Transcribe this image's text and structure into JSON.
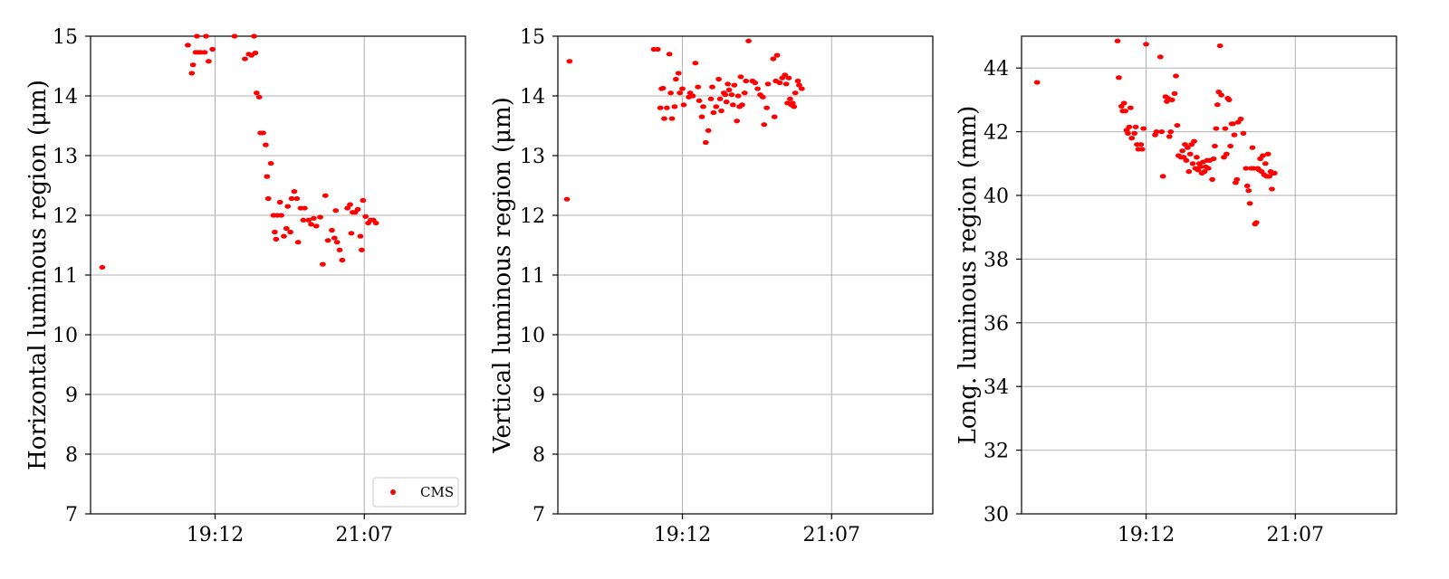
{
  "colors": {
    "series": "#ff0000",
    "grid": "#b0b0b0",
    "axis": "#000000"
  },
  "chart_data": [
    {
      "type": "scatter",
      "ylabel": "Horizontal luminous region (μm)",
      "xlabel": "",
      "x_tick_labels": [
        "19:12",
        "21:07"
      ],
      "x_range_minutes": [
        "17:36",
        "22:25"
      ],
      "ylim": [
        7,
        15
      ],
      "y_ticks": [
        "7",
        "8",
        "9",
        "10",
        "11",
        "12",
        "13",
        "14",
        "15"
      ],
      "grid": true,
      "legend": {
        "placement": "lower-right",
        "entries": [
          "CMS"
        ]
      },
      "series": [
        {
          "name": "CMS",
          "points": [
            [
              "17:45",
              11.13
            ],
            [
              "18:51",
              14.85
            ],
            [
              "18:54",
              14.38
            ],
            [
              "18:55",
              14.52
            ],
            [
              "18:57",
              14.73
            ],
            [
              "18:58",
              15.0
            ],
            [
              "18:59",
              14.73
            ],
            [
              "19:01",
              14.73
            ],
            [
              "19:04",
              14.73
            ],
            [
              "19:05",
              15.0
            ],
            [
              "19:07",
              14.58
            ],
            [
              "19:10",
              14.78
            ],
            [
              "19:27",
              15.0
            ],
            [
              "19:35",
              14.62
            ],
            [
              "19:38",
              14.7
            ],
            [
              "19:40",
              14.68
            ],
            [
              "19:42",
              15.0
            ],
            [
              "19:43",
              14.72
            ],
            [
              "19:44",
              14.05
            ],
            [
              "19:46",
              13.98
            ],
            [
              "19:47",
              13.38
            ],
            [
              "19:49",
              13.38
            ],
            [
              "19:51",
              13.18
            ],
            [
              "19:52",
              12.65
            ],
            [
              "19:53",
              12.28
            ],
            [
              "19:55",
              12.87
            ],
            [
              "19:57",
              12.0
            ],
            [
              "19:58",
              11.72
            ],
            [
              "19:59",
              11.6
            ],
            [
              "20:00",
              12.0
            ],
            [
              "20:02",
              12.22
            ],
            [
              "20:03",
              12.0
            ],
            [
              "20:05",
              11.65
            ],
            [
              "20:07",
              11.78
            ],
            [
              "20:08",
              12.15
            ],
            [
              "20:10",
              11.72
            ],
            [
              "20:11",
              12.28
            ],
            [
              "20:13",
              12.4
            ],
            [
              "20:15",
              12.28
            ],
            [
              "20:16",
              11.55
            ],
            [
              "20:18",
              12.12
            ],
            [
              "20:20",
              11.92
            ],
            [
              "20:21",
              12.12
            ],
            [
              "20:24",
              11.92
            ],
            [
              "20:26",
              11.85
            ],
            [
              "20:28",
              11.95
            ],
            [
              "20:30",
              11.82
            ],
            [
              "20:33",
              11.97
            ],
            [
              "20:35",
              11.18
            ],
            [
              "20:37",
              12.33
            ],
            [
              "20:39",
              11.58
            ],
            [
              "20:42",
              11.75
            ],
            [
              "20:44",
              11.62
            ],
            [
              "20:45",
              12.08
            ],
            [
              "20:46",
              11.55
            ],
            [
              "20:48",
              11.42
            ],
            [
              "20:50",
              11.25
            ],
            [
              "20:54",
              12.12
            ],
            [
              "20:56",
              12.18
            ],
            [
              "20:57",
              11.7
            ],
            [
              "20:58",
              12.05
            ],
            [
              "21:00",
              12.05
            ],
            [
              "21:02",
              12.1
            ],
            [
              "21:04",
              11.65
            ],
            [
              "21:05",
              11.42
            ],
            [
              "21:06",
              12.25
            ],
            [
              "21:08",
              11.98
            ],
            [
              "21:10",
              11.87
            ],
            [
              "21:12",
              11.92
            ],
            [
              "21:14",
              11.92
            ],
            [
              "21:16",
              11.87
            ]
          ]
        }
      ]
    },
    {
      "type": "scatter",
      "ylabel": "Vertical luminous region (μm)",
      "xlabel": "",
      "x_tick_labels": [
        "19:12",
        "21:07"
      ],
      "x_range_minutes": [
        "17:36",
        "22:25"
      ],
      "ylim": [
        7,
        15
      ],
      "y_ticks": [
        "7",
        "8",
        "9",
        "10",
        "11",
        "12",
        "13",
        "14",
        "15"
      ],
      "grid": true,
      "series": [
        {
          "name": "CMS",
          "points": [
            [
              "17:43",
              12.27
            ],
            [
              "17:45",
              14.58
            ],
            [
              "18:50",
              14.78
            ],
            [
              "18:53",
              14.78
            ],
            [
              "18:55",
              13.8
            ],
            [
              "18:56",
              14.12
            ],
            [
              "18:57",
              14.13
            ],
            [
              "18:58",
              13.62
            ],
            [
              "19:00",
              13.8
            ],
            [
              "19:02",
              14.7
            ],
            [
              "19:03",
              14.05
            ],
            [
              "19:04",
              13.62
            ],
            [
              "19:06",
              13.82
            ],
            [
              "19:07",
              14.28
            ],
            [
              "19:09",
              14.38
            ],
            [
              "19:10",
              14.05
            ],
            [
              "19:12",
              14.12
            ],
            [
              "19:13",
              13.85
            ],
            [
              "19:17",
              13.98
            ],
            [
              "19:18",
              14.05
            ],
            [
              "19:20",
              14.0
            ],
            [
              "19:22",
              14.55
            ],
            [
              "19:24",
              14.15
            ],
            [
              "19:25",
              13.92
            ],
            [
              "19:27",
              13.65
            ],
            [
              "19:28",
              13.82
            ],
            [
              "19:30",
              13.22
            ],
            [
              "19:32",
              13.42
            ],
            [
              "19:34",
              13.95
            ],
            [
              "19:35",
              14.15
            ],
            [
              "19:36",
              13.72
            ],
            [
              "19:38",
              13.82
            ],
            [
              "19:40",
              14.28
            ],
            [
              "19:41",
              13.95
            ],
            [
              "19:42",
              13.75
            ],
            [
              "19:44",
              14.05
            ],
            [
              "19:45",
              14.02
            ],
            [
              "19:46",
              13.9
            ],
            [
              "19:47",
              14.2
            ],
            [
              "19:48",
              14.1
            ],
            [
              "19:50",
              14.02
            ],
            [
              "19:51",
              13.85
            ],
            [
              "19:52",
              14.18
            ],
            [
              "19:54",
              13.58
            ],
            [
              "19:55",
              14.0
            ],
            [
              "19:56",
              13.82
            ],
            [
              "19:57",
              14.32
            ],
            [
              "19:58",
              13.85
            ],
            [
              "20:00",
              14.05
            ],
            [
              "20:01",
              14.25
            ],
            [
              "20:03",
              14.92
            ],
            [
              "20:06",
              14.25
            ],
            [
              "20:08",
              14.22
            ],
            [
              "20:10",
              14.12
            ],
            [
              "20:12",
              14.02
            ],
            [
              "20:14",
              13.98
            ],
            [
              "20:15",
              13.52
            ],
            [
              "20:17",
              13.8
            ],
            [
              "20:18",
              14.2
            ],
            [
              "20:22",
              14.62
            ],
            [
              "20:23",
              13.65
            ],
            [
              "20:24",
              14.25
            ],
            [
              "20:25",
              14.68
            ],
            [
              "20:27",
              14.22
            ],
            [
              "20:29",
              14.3
            ],
            [
              "20:31",
              14.35
            ],
            [
              "20:32",
              14.2
            ],
            [
              "20:33",
              13.88
            ],
            [
              "20:34",
              14.3
            ],
            [
              "20:35",
              13.95
            ],
            [
              "20:36",
              13.85
            ],
            [
              "20:37",
              13.88
            ],
            [
              "20:38",
              13.82
            ],
            [
              "20:39",
              14.05
            ],
            [
              "20:41",
              14.25
            ],
            [
              "20:42",
              14.18
            ],
            [
              "20:44",
              14.12
            ]
          ]
        }
      ]
    },
    {
      "type": "scatter",
      "ylabel": "Long. luminous region (mm)",
      "xlabel": "",
      "x_tick_labels": [
        "19:12",
        "21:07"
      ],
      "x_range_minutes": [
        "17:36",
        "22:25"
      ],
      "ylim": [
        30,
        45
      ],
      "y_ticks": [
        "30",
        "32",
        "34",
        "36",
        "38",
        "40",
        "42",
        "44"
      ],
      "grid": true,
      "series": [
        {
          "name": "CMS",
          "points": [
            [
              "17:48",
              43.55
            ],
            [
              "18:50",
              44.85
            ],
            [
              "18:51",
              43.7
            ],
            [
              "18:53",
              42.8
            ],
            [
              "18:54",
              42.65
            ],
            [
              "18:55",
              42.9
            ],
            [
              "18:56",
              42.65
            ],
            [
              "18:57",
              42.05
            ],
            [
              "18:58",
              41.95
            ],
            [
              "18:59",
              42.15
            ],
            [
              "19:00",
              42.75
            ],
            [
              "19:01",
              41.8
            ],
            [
              "19:03",
              41.95
            ],
            [
              "19:04",
              42.15
            ],
            [
              "19:05",
              41.6
            ],
            [
              "19:06",
              41.45
            ],
            [
              "19:08",
              41.6
            ],
            [
              "19:09",
              41.45
            ],
            [
              "19:10",
              42.1
            ],
            [
              "19:12",
              44.75
            ],
            [
              "19:19",
              41.9
            ],
            [
              "19:20",
              42.0
            ],
            [
              "19:23",
              44.35
            ],
            [
              "19:24",
              42.0
            ],
            [
              "19:25",
              40.6
            ],
            [
              "19:27",
              43.1
            ],
            [
              "19:28",
              42.95
            ],
            [
              "19:29",
              43.05
            ],
            [
              "19:30",
              41.85
            ],
            [
              "19:31",
              42.0
            ],
            [
              "19:32",
              43.0
            ],
            [
              "19:34",
              43.2
            ],
            [
              "19:35",
              43.75
            ],
            [
              "19:36",
              42.2
            ],
            [
              "19:37",
              41.25
            ],
            [
              "19:39",
              41.2
            ],
            [
              "19:40",
              41.4
            ],
            [
              "19:41",
              41.2
            ],
            [
              "19:42",
              41.6
            ],
            [
              "19:43",
              41.1
            ],
            [
              "19:44",
              41.5
            ],
            [
              "19:45",
              40.75
            ],
            [
              "19:46",
              41.3
            ],
            [
              "19:47",
              41.6
            ],
            [
              "19:48",
              41.0
            ],
            [
              "19:49",
              41.7
            ],
            [
              "19:50",
              40.85
            ],
            [
              "19:51",
              41.2
            ],
            [
              "19:52",
              40.8
            ],
            [
              "19:53",
              41.0
            ],
            [
              "19:54",
              40.9
            ],
            [
              "19:55",
              40.7
            ],
            [
              "19:56",
              41.05
            ],
            [
              "19:57",
              40.75
            ],
            [
              "19:58",
              40.9
            ],
            [
              "19:59",
              41.1
            ],
            [
              "20:00",
              40.85
            ],
            [
              "20:01",
              41.1
            ],
            [
              "20:03",
              40.5
            ],
            [
              "20:04",
              41.15
            ],
            [
              "20:05",
              41.55
            ],
            [
              "20:06",
              42.1
            ],
            [
              "20:07",
              42.85
            ],
            [
              "20:08",
              43.25
            ],
            [
              "20:09",
              44.7
            ],
            [
              "20:10",
              43.15
            ],
            [
              "20:12",
              41.2
            ],
            [
              "20:13",
              42.1
            ],
            [
              "20:14",
              41.3
            ],
            [
              "20:15",
              43.05
            ],
            [
              "20:16",
              43.0
            ],
            [
              "20:17",
              41.55
            ],
            [
              "20:18",
              42.25
            ],
            [
              "20:19",
              42.25
            ],
            [
              "20:20",
              41.9
            ],
            [
              "20:21",
              40.4
            ],
            [
              "20:22",
              40.5
            ],
            [
              "20:23",
              42.3
            ],
            [
              "20:25",
              42.4
            ],
            [
              "20:27",
              41.95
            ],
            [
              "20:29",
              40.85
            ],
            [
              "20:30",
              40.3
            ],
            [
              "20:31",
              40.15
            ],
            [
              "20:32",
              39.75
            ],
            [
              "20:33",
              40.85
            ],
            [
              "20:34",
              41.5
            ],
            [
              "20:35",
              40.85
            ],
            [
              "20:36",
              39.1
            ],
            [
              "20:37",
              39.15
            ],
            [
              "20:38",
              40.85
            ],
            [
              "20:39",
              40.8
            ],
            [
              "20:40",
              41.15
            ],
            [
              "20:41",
              40.75
            ],
            [
              "20:42",
              41.25
            ],
            [
              "20:43",
              40.65
            ],
            [
              "20:44",
              41.0
            ],
            [
              "20:45",
              40.6
            ],
            [
              "20:46",
              41.3
            ],
            [
              "20:47",
              40.6
            ],
            [
              "20:48",
              40.75
            ],
            [
              "20:49",
              40.2
            ],
            [
              "20:50",
              40.7
            ],
            [
              "20:51",
              40.7
            ]
          ]
        }
      ]
    }
  ]
}
